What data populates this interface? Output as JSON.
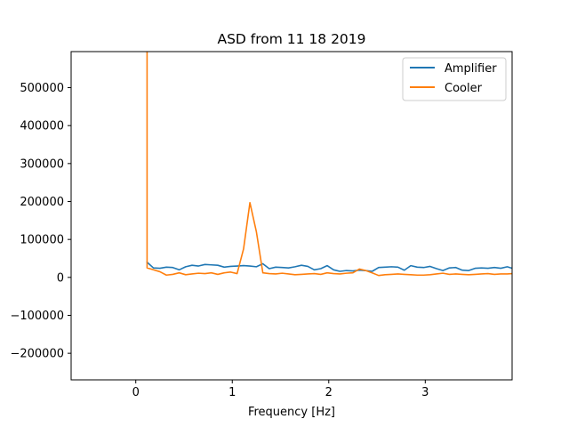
{
  "chart_data": {
    "type": "line",
    "title": "ASD from 11 18 2019",
    "xlabel": "Frequency [Hz]",
    "ylabel": "",
    "xlim": [
      -0.67,
      3.9
    ],
    "ylim": [
      -270000,
      595000
    ],
    "xticks": [
      0,
      1,
      2,
      3
    ],
    "xtick_labels": [
      "0",
      "1",
      "2",
      "3"
    ],
    "yticks": [
      -200000,
      -100000,
      0,
      100000,
      200000,
      300000,
      400000,
      500000
    ],
    "ytick_labels": [
      "−200000",
      "−100000",
      "0",
      "100000",
      "200000",
      "300000",
      "400000",
      "500000"
    ],
    "grid": false,
    "legend_position": "top-right",
    "series": [
      {
        "name": "Amplifier",
        "color": "#1f77b4",
        "x": [
          0.117,
          0.183,
          0.25,
          0.317,
          0.383,
          0.45,
          0.517,
          0.583,
          0.65,
          0.717,
          0.783,
          0.85,
          0.917,
          0.983,
          1.05,
          1.117,
          1.183,
          1.25,
          1.317,
          1.383,
          1.45,
          1.517,
          1.583,
          1.65,
          1.717,
          1.783,
          1.85,
          1.917,
          1.983,
          2.05,
          2.117,
          2.183,
          2.25,
          2.317,
          2.383,
          2.45,
          2.517,
          2.583,
          2.65,
          2.717,
          2.783,
          2.85,
          2.917,
          2.983,
          3.05,
          3.117,
          3.183,
          3.25,
          3.317,
          3.383,
          3.45,
          3.517,
          3.583,
          3.65,
          3.717,
          3.783,
          3.85,
          3.9
        ],
        "values": [
          40000,
          25000,
          24000,
          27000,
          26000,
          20000,
          28000,
          32000,
          30000,
          34000,
          33000,
          32000,
          27000,
          29000,
          30000,
          31000,
          30000,
          28000,
          36000,
          23000,
          27000,
          26000,
          25000,
          28000,
          32000,
          29000,
          20000,
          23000,
          31000,
          20000,
          16000,
          18000,
          17000,
          19000,
          18000,
          16000,
          26000,
          27000,
          28000,
          27000,
          19000,
          31000,
          27000,
          26000,
          29000,
          23000,
          18000,
          25000,
          26000,
          19000,
          18000,
          24000,
          25000,
          24000,
          26000,
          24000,
          28000,
          24000
        ]
      },
      {
        "name": "Cooler",
        "color": "#ff7f0e",
        "x": [
          0.117,
          0.117,
          0.183,
          0.25,
          0.317,
          0.383,
          0.45,
          0.517,
          0.583,
          0.65,
          0.717,
          0.783,
          0.85,
          0.917,
          0.983,
          1.05,
          1.117,
          1.183,
          1.25,
          1.317,
          1.383,
          1.45,
          1.517,
          1.583,
          1.65,
          1.717,
          1.783,
          1.85,
          1.917,
          1.983,
          2.05,
          2.117,
          2.183,
          2.25,
          2.317,
          2.383,
          2.45,
          2.517,
          2.583,
          2.65,
          2.717,
          2.783,
          2.85,
          2.917,
          2.983,
          3.05,
          3.117,
          3.183,
          3.25,
          3.317,
          3.383,
          3.45,
          3.517,
          3.583,
          3.65,
          3.717,
          3.783,
          3.85,
          3.9
        ],
        "values": [
          620000,
          25000,
          20000,
          15000,
          6000,
          8000,
          12000,
          7000,
          9000,
          11000,
          10000,
          12000,
          8000,
          12000,
          14000,
          10000,
          75000,
          197000,
          120000,
          12000,
          10000,
          9000,
          11000,
          9000,
          7000,
          8000,
          9000,
          10000,
          8000,
          12000,
          10000,
          9000,
          11000,
          12000,
          22000,
          18000,
          12000,
          5000,
          7000,
          8000,
          9000,
          8000,
          7000,
          6000,
          6000,
          7000,
          9000,
          11000,
          8000,
          9000,
          8000,
          7000,
          8000,
          9000,
          10000,
          8000,
          9000,
          9000,
          10000
        ]
      }
    ]
  }
}
